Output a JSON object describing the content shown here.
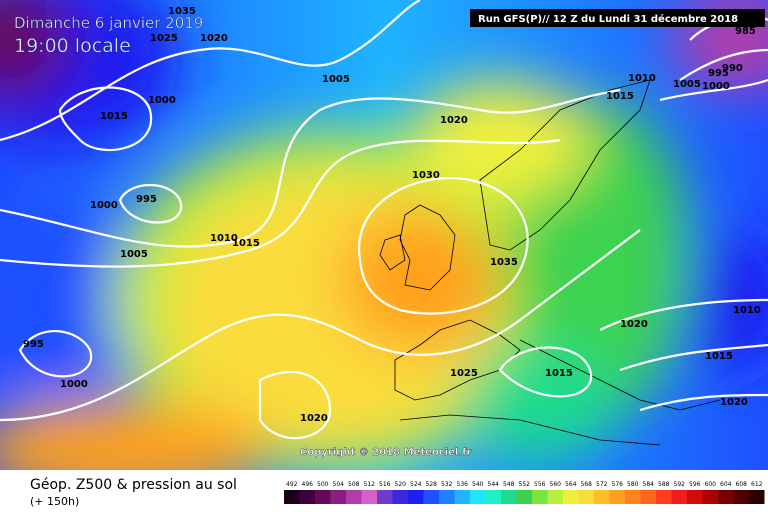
{
  "header": {
    "date": "Dimanche 6 janvier 2019",
    "time": "19:00 locale",
    "run": "Run GFS(P)// 12 Z du Lundi 31 décembre 2018"
  },
  "isobar_labels": [
    "1035",
    "1025",
    "1020",
    "1005",
    "1000",
    "1015",
    "1020",
    "1030",
    "1000",
    "995",
    "1010",
    "1015",
    "1005",
    "1035",
    "995",
    "1000",
    "1025",
    "1015",
    "1020",
    "1020",
    "1010",
    "1015",
    "1005",
    "1000",
    "995",
    "990",
    "985",
    "1010",
    "1015",
    "1020"
  ],
  "copyright": "Copyright © 2018 Meteociel.fr",
  "legend": {
    "title": "Géop. Z500 & pression au sol",
    "lead": "(+ 150h)",
    "scale": [
      "492",
      "496",
      "500",
      "504",
      "508",
      "512",
      "516",
      "520",
      "524",
      "528",
      "532",
      "536",
      "540",
      "544",
      "548",
      "552",
      "556",
      "560",
      "564",
      "568",
      "572",
      "576",
      "580",
      "584",
      "588",
      "592",
      "596",
      "600",
      "604",
      "608",
      "612"
    ],
    "colors": [
      "#1a001a",
      "#3c003c",
      "#640a5a",
      "#8c1e82",
      "#b43caa",
      "#d264c8",
      "#6e3cc8",
      "#3c28dc",
      "#1e1ef0",
      "#1e50ff",
      "#1e82ff",
      "#1eb4ff",
      "#1ee6ff",
      "#1ef0c8",
      "#1edc8c",
      "#3cd250",
      "#78e63c",
      "#b4f03c",
      "#f0f03c",
      "#fadc3c",
      "#ffbe28",
      "#ffa01e",
      "#ff821e",
      "#ff641e",
      "#ff3c1e",
      "#f01e1e",
      "#d20a0a",
      "#aa0000",
      "#780000",
      "#500000",
      "#280000"
    ]
  }
}
